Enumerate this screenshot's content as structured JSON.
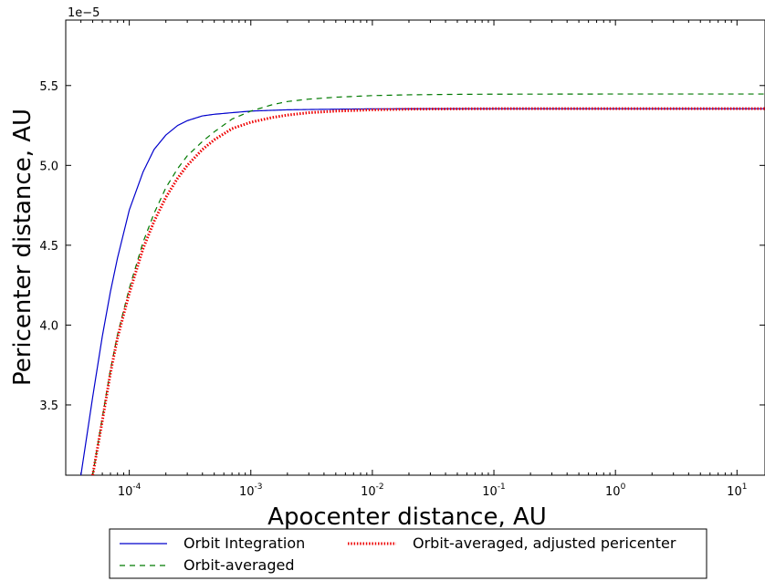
{
  "chart_data": {
    "type": "line",
    "xlabel": "Apocenter distance, AU",
    "ylabel": "Pericenter distance, AU",
    "x_scale": "log",
    "y_offset_label": "1e−5",
    "xlim": [
      3e-05,
      17
    ],
    "ylim": [
      3.06,
      5.91
    ],
    "grid": false,
    "legend_placement": "below plot",
    "x_ticks": [
      {
        "value": 0.0001,
        "base": "10",
        "exp": "-4"
      },
      {
        "value": 0.001,
        "base": "10",
        "exp": "-3"
      },
      {
        "value": 0.01,
        "base": "10",
        "exp": "-2"
      },
      {
        "value": 0.1,
        "base": "10",
        "exp": "-1"
      },
      {
        "value": 1,
        "base": "10",
        "exp": "0"
      },
      {
        "value": 10,
        "base": "10",
        "exp": "1"
      }
    ],
    "y_ticks": [
      "3.5",
      "4.0",
      "4.5",
      "5.0",
      "5.5"
    ],
    "series": [
      {
        "name": "Orbit Integration",
        "color": "#0000cc",
        "style": "solid",
        "x": [
          4e-05,
          5e-05,
          6e-05,
          7e-05,
          8e-05,
          0.0001,
          0.00013,
          0.00016,
          0.0002,
          0.00025,
          0.0003,
          0.0004,
          0.0005,
          0.0007,
          0.001,
          0.0015,
          0.002,
          0.003,
          0.005,
          0.01,
          0.03,
          0.1,
          1,
          17
        ],
        "y": [
          3.06,
          3.55,
          3.93,
          4.21,
          4.42,
          4.72,
          4.96,
          5.1,
          5.19,
          5.25,
          5.28,
          5.31,
          5.32,
          5.33,
          5.34,
          5.345,
          5.348,
          5.35,
          5.352,
          5.354,
          5.355,
          5.355,
          5.355,
          5.355
        ]
      },
      {
        "name": "Orbit-averaged",
        "color": "#007a00",
        "style": "dashed",
        "x": [
          5e-05,
          6e-05,
          7e-05,
          8e-05,
          0.0001,
          0.00013,
          0.00016,
          0.0002,
          0.00025,
          0.0003,
          0.0004,
          0.0005,
          0.0007,
          0.001,
          0.0015,
          0.002,
          0.003,
          0.005,
          0.01,
          0.02,
          0.05,
          0.1,
          1,
          17
        ],
        "y": [
          3.06,
          3.42,
          3.72,
          3.94,
          4.23,
          4.52,
          4.7,
          4.86,
          4.98,
          5.06,
          5.15,
          5.21,
          5.29,
          5.34,
          5.38,
          5.4,
          5.415,
          5.427,
          5.437,
          5.442,
          5.445,
          5.446,
          5.447,
          5.447
        ]
      },
      {
        "name": "Orbit-averaged, adjusted pericenter",
        "color": "#ee0000",
        "style": "dotted",
        "x": [
          5e-05,
          6e-05,
          7e-05,
          8e-05,
          0.0001,
          0.00013,
          0.00016,
          0.0002,
          0.00025,
          0.0003,
          0.0004,
          0.0005,
          0.0007,
          0.001,
          0.0015,
          0.002,
          0.003,
          0.005,
          0.01,
          0.02,
          0.05,
          0.1,
          1,
          17
        ],
        "y": [
          3.06,
          3.4,
          3.7,
          3.92,
          4.2,
          4.48,
          4.65,
          4.8,
          4.92,
          5.0,
          5.1,
          5.16,
          5.23,
          5.27,
          5.3,
          5.315,
          5.33,
          5.34,
          5.348,
          5.352,
          5.354,
          5.355,
          5.355,
          5.355
        ]
      }
    ]
  }
}
